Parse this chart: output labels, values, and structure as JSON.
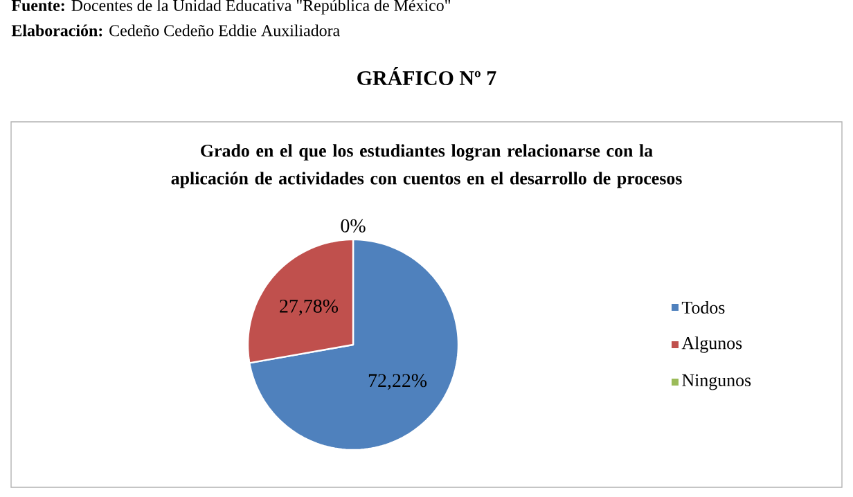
{
  "chart_data": {
    "type": "pie",
    "title": "Grado en el que los estudiantes logran relacionarse con la aplicación de actividades con cuentos en el desarrollo de procesos",
    "categories": [
      "Todos",
      "Algunos",
      "Ningunos"
    ],
    "values": [
      72.22,
      27.78,
      0
    ],
    "colors": [
      "#4f81bd",
      "#c0504d",
      "#9bbb59"
    ],
    "value_labels": [
      "72,22%",
      "27,78%",
      "0%"
    ],
    "legend": "right",
    "annotations": [
      "**Fuente:** Docentes de la Unidad Educativa \"República de México\"",
      "**Elaboración:** Cedeño Cedeño Eddie Auxiliadora",
      "GRÁFICO Nº 7"
    ]
  }
}
